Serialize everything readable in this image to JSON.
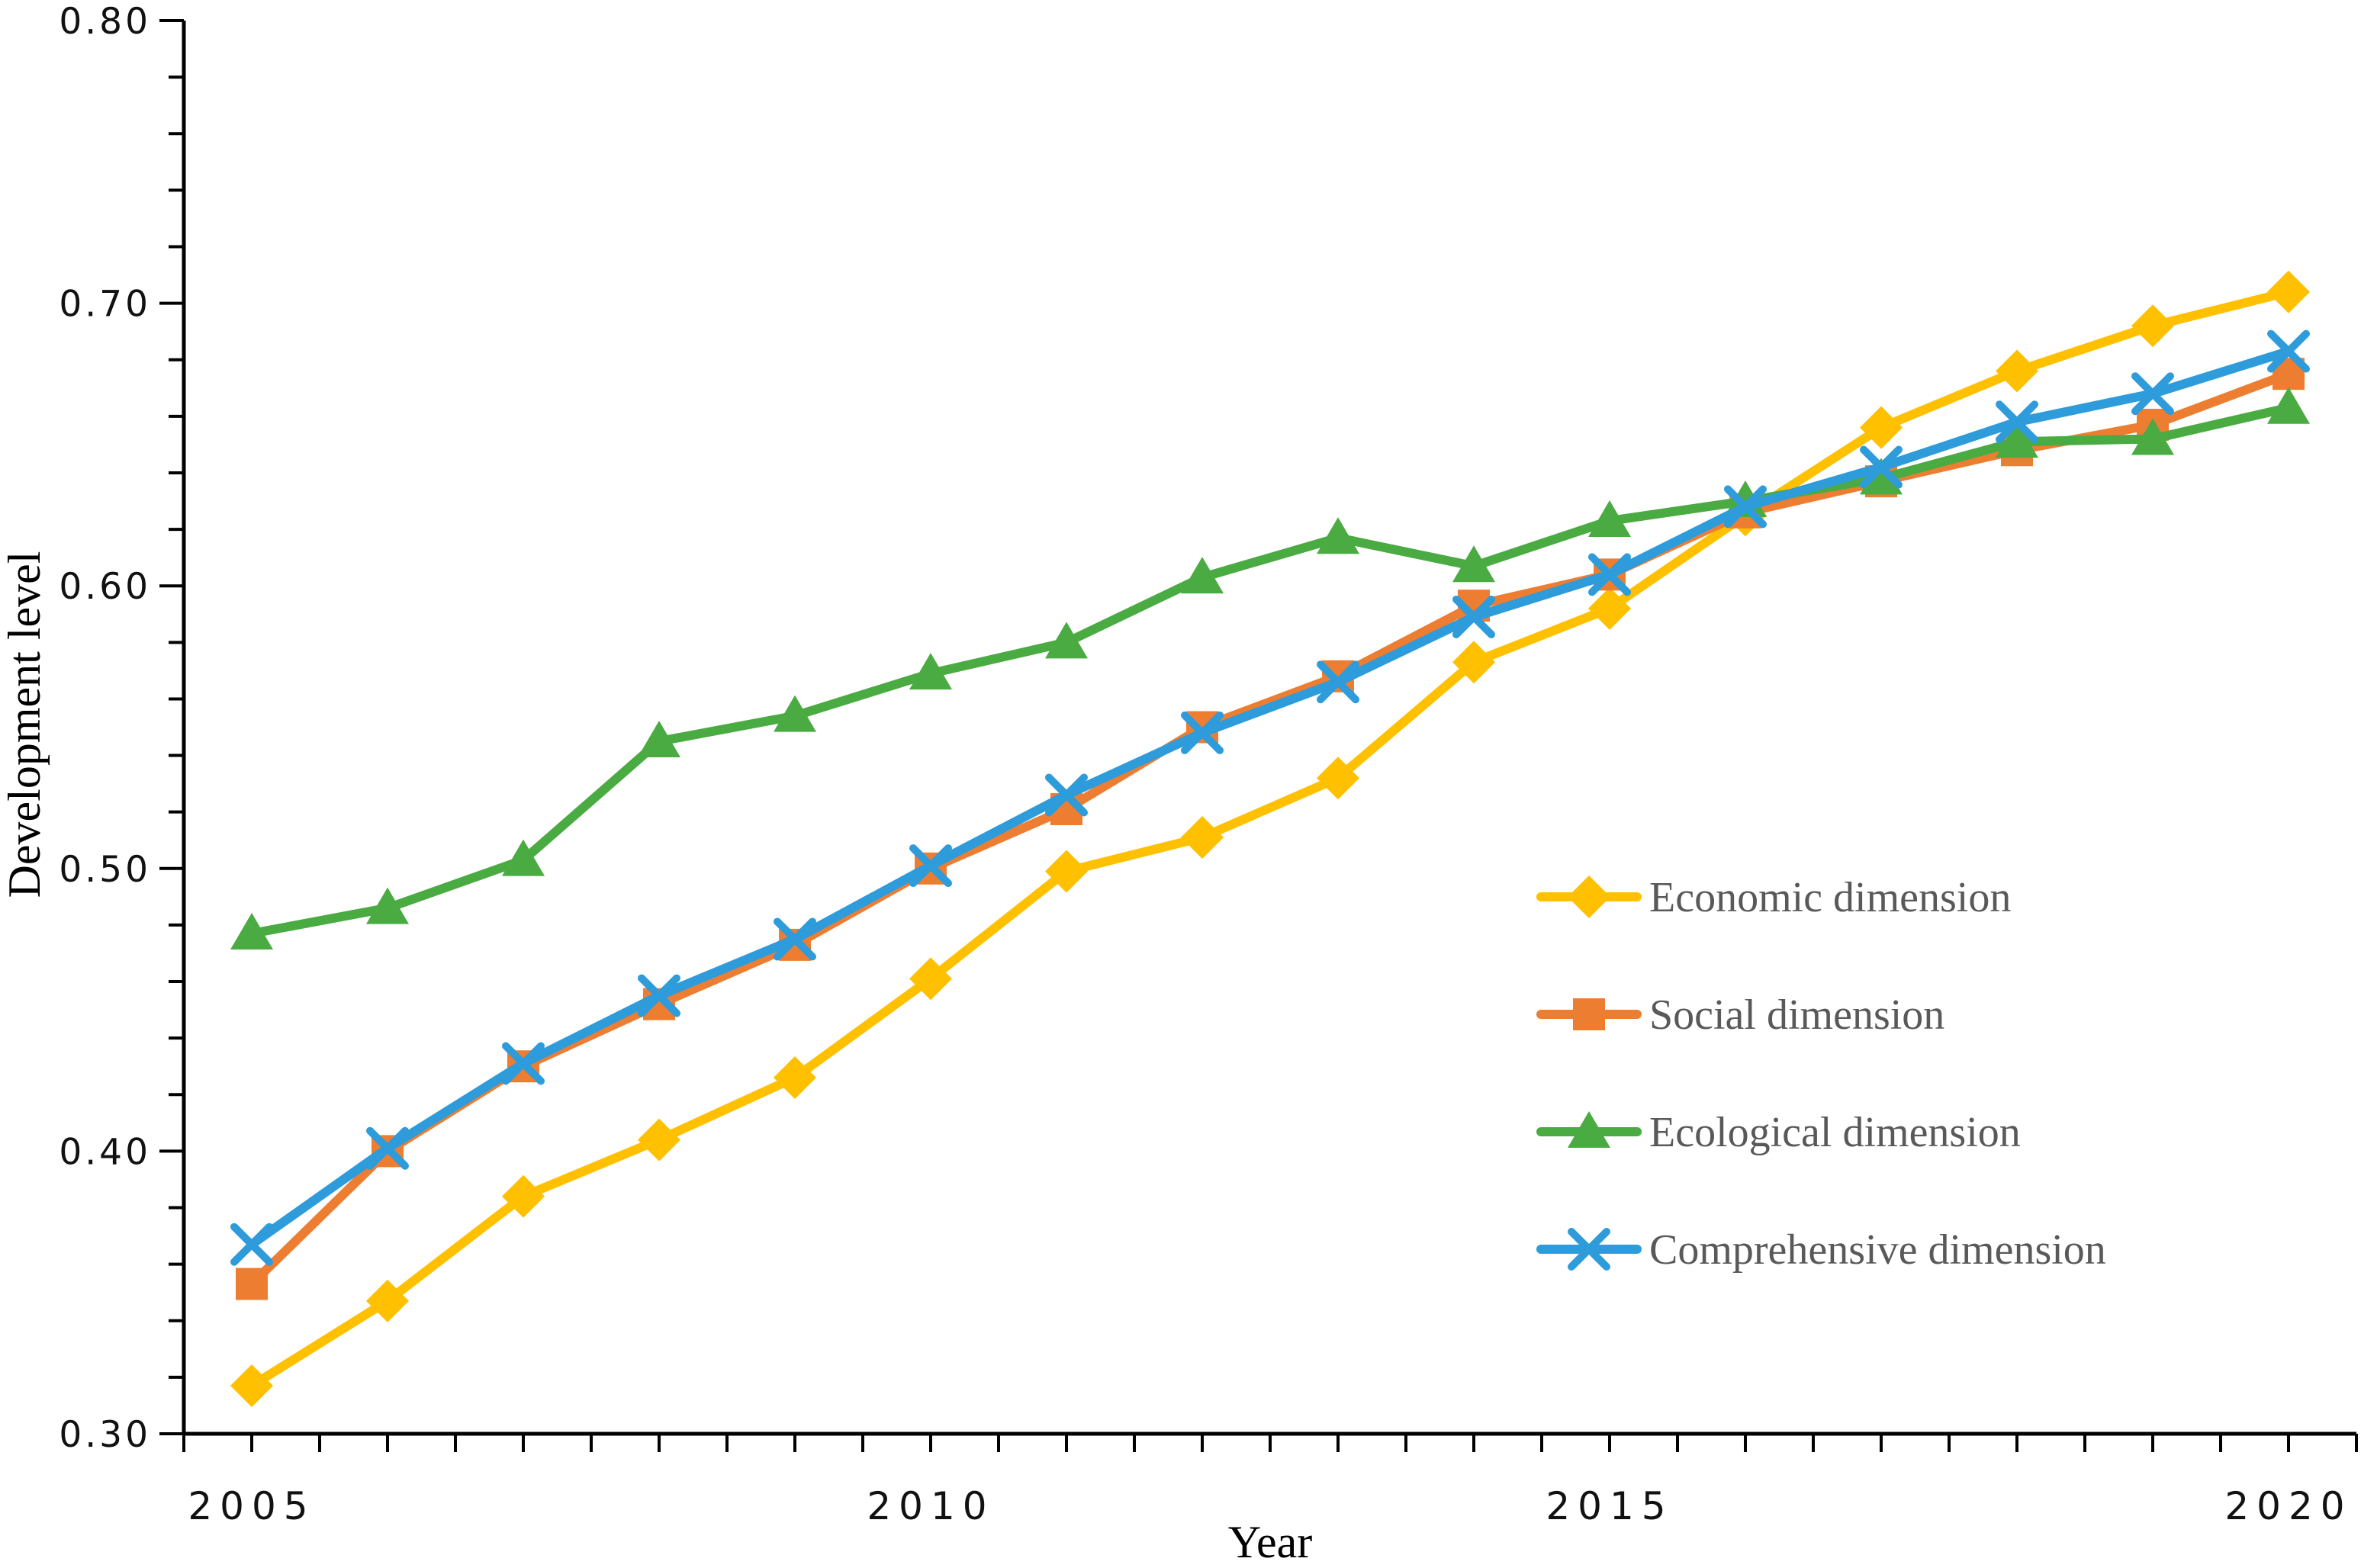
{
  "figure": {
    "background": "#ffffff",
    "axis_color": "#000000",
    "legend_text_color": "#595959"
  },
  "chart_data": {
    "type": "line",
    "title": "",
    "xlabel": "Year",
    "ylabel": "Development level",
    "x": [
      2005,
      2006,
      2007,
      2008,
      2009,
      2010,
      2011,
      2012,
      2013,
      2014,
      2015,
      2016,
      2017,
      2018,
      2019,
      2020
    ],
    "x_tick_labels": [
      "2005",
      "2010",
      "2015",
      "2020"
    ],
    "x_tick_positions": [
      0,
      5,
      10,
      15
    ],
    "ylim": [
      0.3,
      0.8
    ],
    "y_major_step": 0.1,
    "y_minor_step": 0.02,
    "y_tick_labels": [
      "0.30",
      "0.40",
      "0.50",
      "0.60",
      "0.70",
      "0.80"
    ],
    "grid": "off",
    "legend_position": "middle-right",
    "series": [
      {
        "name": "Economic dimension",
        "marker": "diamond",
        "color": "#FFC000",
        "values": [
          0.317,
          0.347,
          0.384,
          0.404,
          0.426,
          0.461,
          0.499,
          0.511,
          0.532,
          0.573,
          0.592,
          0.625,
          0.656,
          0.676,
          0.692,
          0.704
        ]
      },
      {
        "name": "Social dimension",
        "marker": "square",
        "color": "#ED7D31",
        "values": [
          0.353,
          0.4,
          0.43,
          0.452,
          0.473,
          0.5,
          0.521,
          0.55,
          0.568,
          0.593,
          0.604,
          0.626,
          0.637,
          0.648,
          0.657,
          0.675
        ]
      },
      {
        "name": "Ecological dimension",
        "marker": "triangle",
        "color": "#4AAB42",
        "values": [
          0.477,
          0.486,
          0.503,
          0.545,
          0.554,
          0.569,
          0.58,
          0.603,
          0.617,
          0.607,
          0.623,
          0.63,
          0.638,
          0.651,
          0.652,
          0.663
        ]
      },
      {
        "name": "Comprehensive dimension",
        "marker": "x",
        "color": "#2E9BDB",
        "values": [
          0.367,
          0.401,
          0.431,
          0.455,
          0.475,
          0.501,
          0.526,
          0.548,
          0.566,
          0.589,
          0.604,
          0.628,
          0.642,
          0.658,
          0.668,
          0.683
        ]
      }
    ]
  }
}
